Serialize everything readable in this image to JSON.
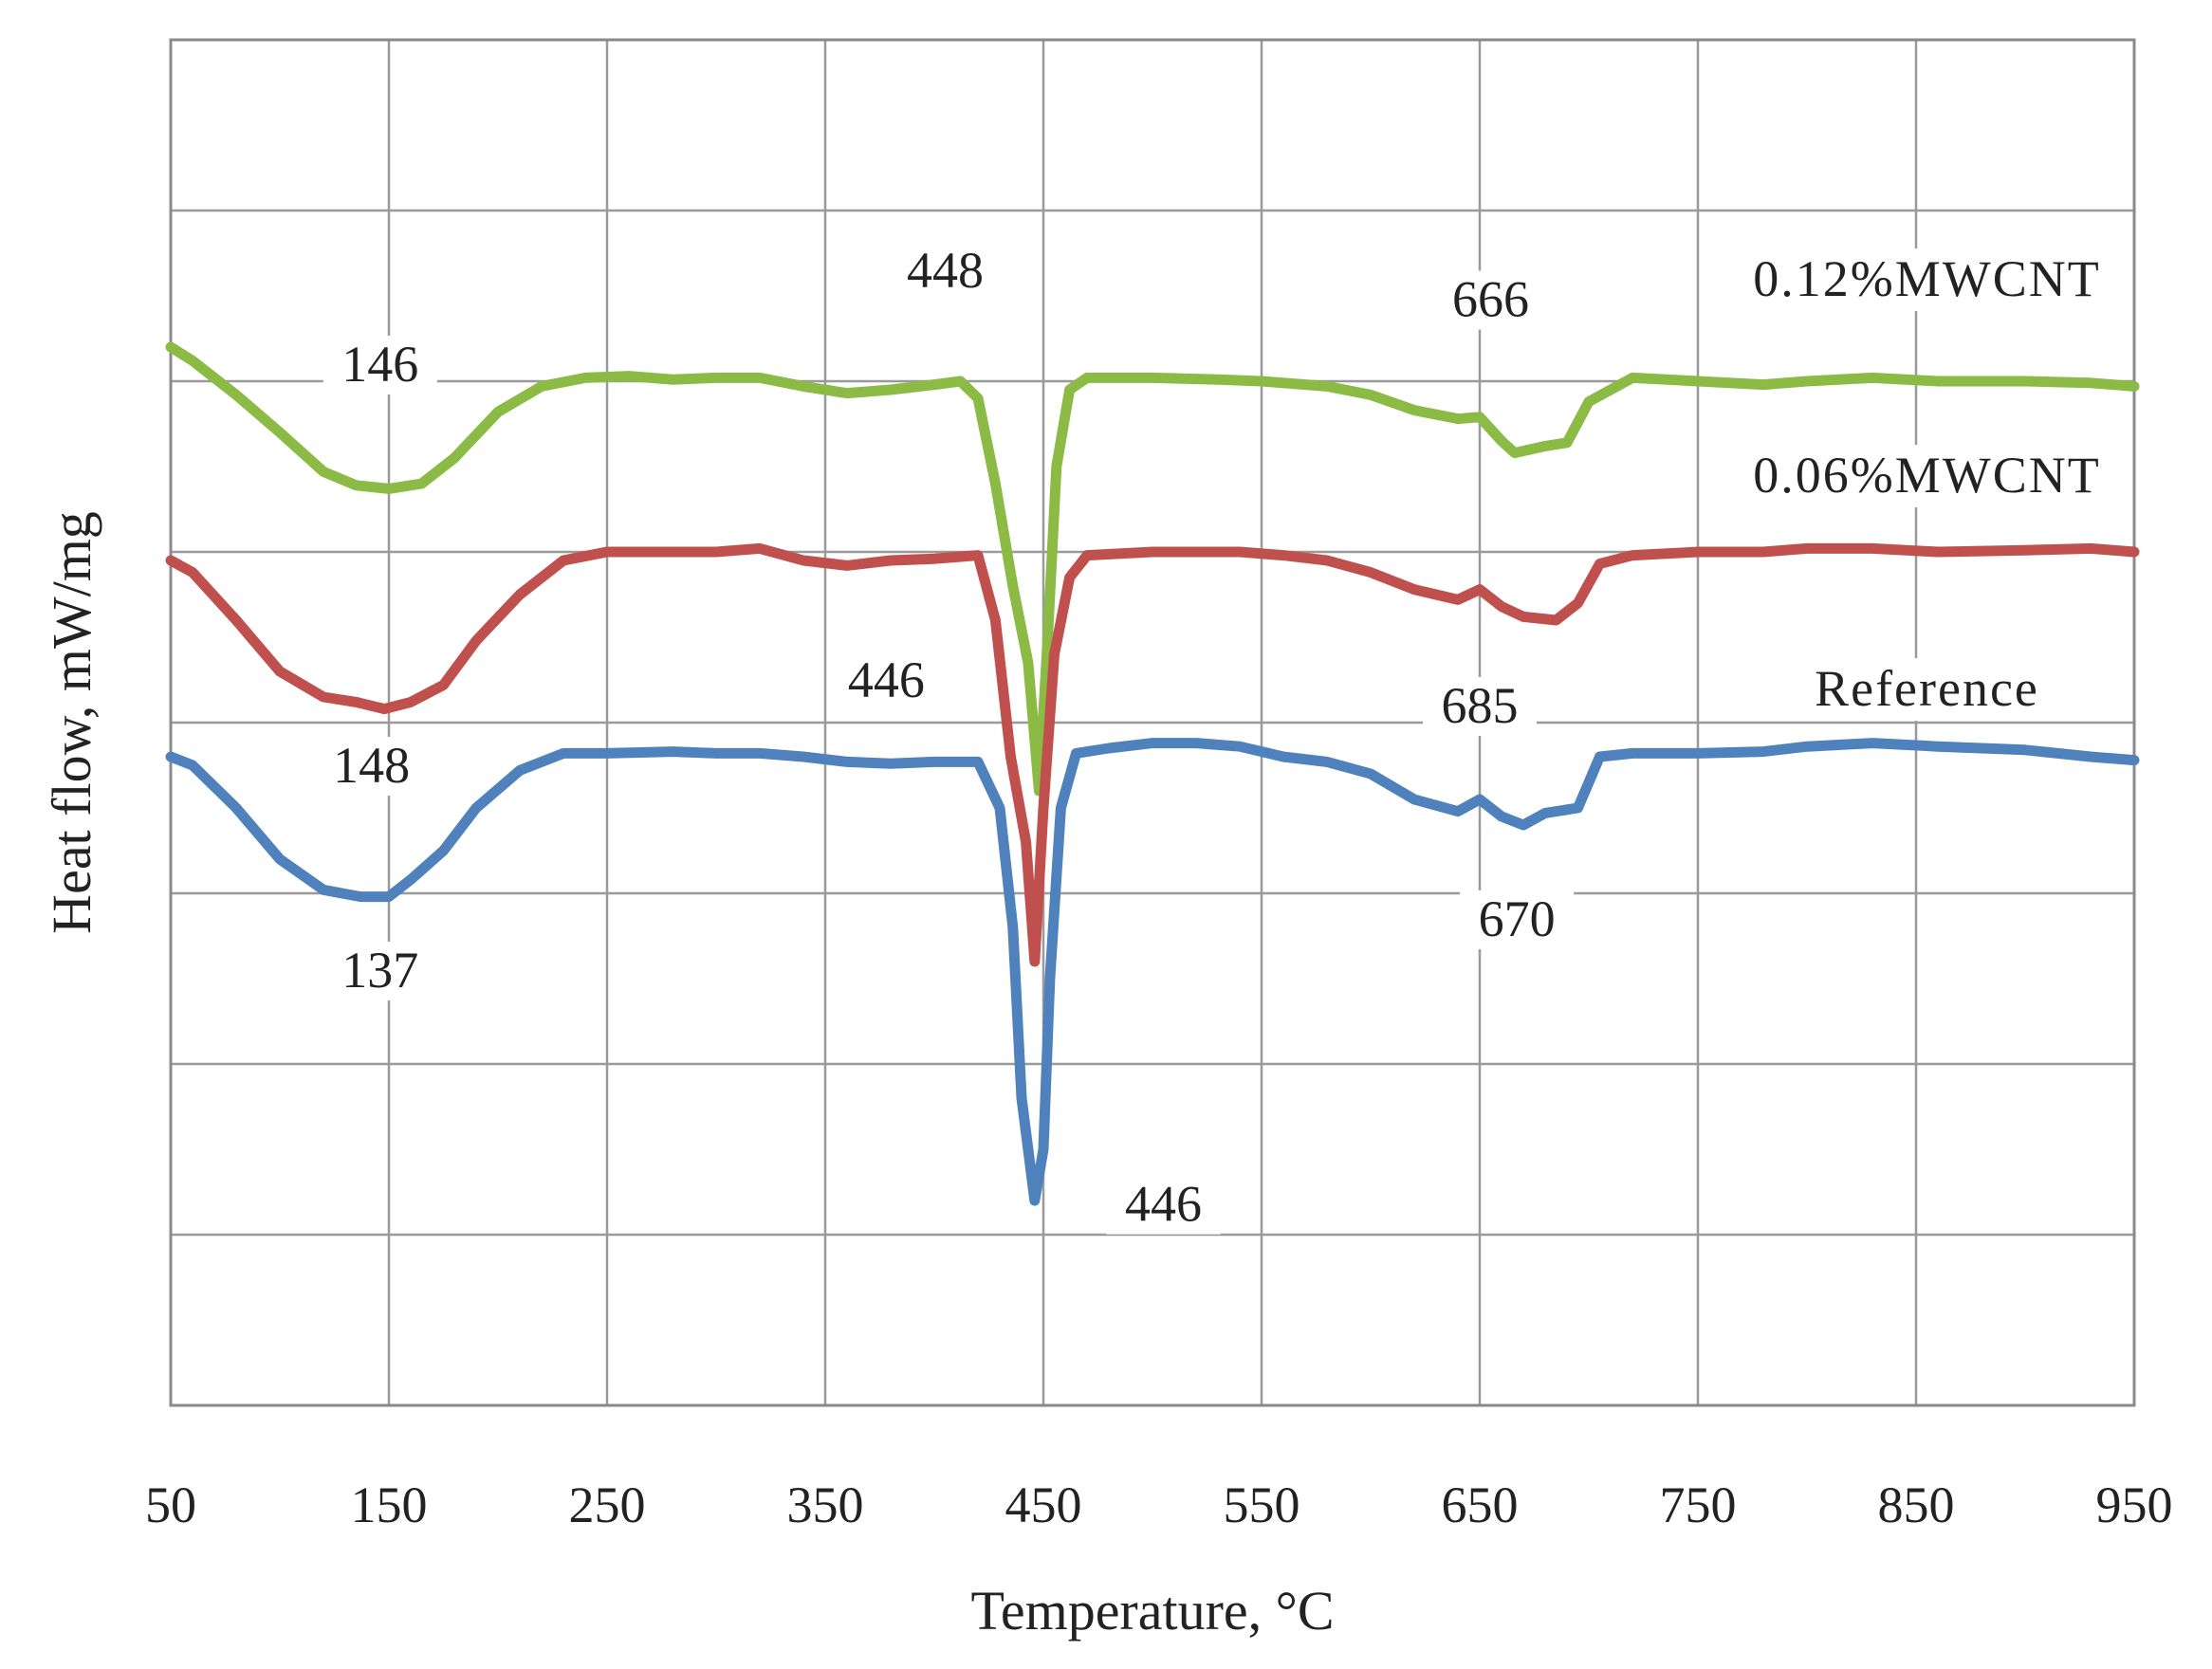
{
  "chart_data": {
    "type": "line",
    "title": "",
    "xlabel": "Temperature, °C",
    "ylabel": "Heat flow, mW/mg",
    "xlim": [
      50,
      950
    ],
    "ylim": [
      0,
      8
    ],
    "x_ticks": [
      50,
      150,
      250,
      350,
      450,
      550,
      650,
      750,
      850,
      950
    ],
    "y_ticks_labeled": false,
    "grid": true,
    "legend": "none",
    "series": [
      {
        "name": "0.12%MWCNT",
        "color": "#8bbb45",
        "points": [
          [
            50,
            6.2
          ],
          [
            60,
            6.12
          ],
          [
            80,
            5.92
          ],
          [
            100,
            5.7
          ],
          [
            120,
            5.47
          ],
          [
            135,
            5.39
          ],
          [
            150,
            5.37
          ],
          [
            165,
            5.4
          ],
          [
            180,
            5.55
          ],
          [
            200,
            5.82
          ],
          [
            220,
            5.97
          ],
          [
            240,
            6.02
          ],
          [
            260,
            6.03
          ],
          [
            280,
            6.01
          ],
          [
            300,
            6.02
          ],
          [
            320,
            6.02
          ],
          [
            340,
            5.97
          ],
          [
            360,
            5.93
          ],
          [
            380,
            5.95
          ],
          [
            400,
            5.98
          ],
          [
            412,
            6.0
          ],
          [
            420,
            5.9
          ],
          [
            428,
            5.4
          ],
          [
            436,
            4.8
          ],
          [
            443,
            4.35
          ],
          [
            448,
            3.6
          ],
          [
            452,
            4.5
          ],
          [
            456,
            5.5
          ],
          [
            462,
            5.95
          ],
          [
            470,
            6.02
          ],
          [
            500,
            6.02
          ],
          [
            530,
            6.01
          ],
          [
            550,
            6.0
          ],
          [
            580,
            5.97
          ],
          [
            600,
            5.92
          ],
          [
            620,
            5.83
          ],
          [
            640,
            5.78
          ],
          [
            650,
            5.79
          ],
          [
            660,
            5.65
          ],
          [
            666,
            5.58
          ],
          [
            680,
            5.62
          ],
          [
            690,
            5.64
          ],
          [
            700,
            5.88
          ],
          [
            720,
            6.02
          ],
          [
            750,
            6.0
          ],
          [
            780,
            5.98
          ],
          [
            800,
            6.0
          ],
          [
            830,
            6.02
          ],
          [
            860,
            6.0
          ],
          [
            900,
            6.0
          ],
          [
            930,
            5.99
          ],
          [
            950,
            5.97
          ]
        ]
      },
      {
        "name": "0.06%MWCNT",
        "color": "#c0504d",
        "points": [
          [
            50,
            4.95
          ],
          [
            60,
            4.88
          ],
          [
            80,
            4.6
          ],
          [
            100,
            4.3
          ],
          [
            120,
            4.15
          ],
          [
            135,
            4.12
          ],
          [
            148,
            4.08
          ],
          [
            160,
            4.12
          ],
          [
            175,
            4.22
          ],
          [
            190,
            4.48
          ],
          [
            210,
            4.75
          ],
          [
            230,
            4.95
          ],
          [
            250,
            5.0
          ],
          [
            280,
            5.0
          ],
          [
            300,
            5.0
          ],
          [
            320,
            5.02
          ],
          [
            340,
            4.95
          ],
          [
            360,
            4.92
          ],
          [
            380,
            4.95
          ],
          [
            400,
            4.96
          ],
          [
            420,
            4.98
          ],
          [
            428,
            4.6
          ],
          [
            435,
            3.8
          ],
          [
            442,
            3.3
          ],
          [
            446,
            2.6
          ],
          [
            450,
            3.5
          ],
          [
            455,
            4.4
          ],
          [
            462,
            4.85
          ],
          [
            470,
            4.98
          ],
          [
            500,
            5.0
          ],
          [
            540,
            5.0
          ],
          [
            560,
            4.98
          ],
          [
            580,
            4.95
          ],
          [
            600,
            4.88
          ],
          [
            620,
            4.78
          ],
          [
            640,
            4.72
          ],
          [
            650,
            4.78
          ],
          [
            660,
            4.68
          ],
          [
            670,
            4.62
          ],
          [
            685,
            4.6
          ],
          [
            695,
            4.7
          ],
          [
            705,
            4.93
          ],
          [
            720,
            4.98
          ],
          [
            750,
            5.0
          ],
          [
            780,
            5.0
          ],
          [
            800,
            5.02
          ],
          [
            830,
            5.02
          ],
          [
            860,
            5.0
          ],
          [
            900,
            5.01
          ],
          [
            930,
            5.02
          ],
          [
            950,
            5.0
          ]
        ]
      },
      {
        "name": "Reference",
        "color": "#4f81bd",
        "points": [
          [
            50,
            3.8
          ],
          [
            60,
            3.75
          ],
          [
            80,
            3.5
          ],
          [
            100,
            3.2
          ],
          [
            120,
            3.02
          ],
          [
            137,
            2.98
          ],
          [
            150,
            2.98
          ],
          [
            160,
            3.08
          ],
          [
            175,
            3.25
          ],
          [
            190,
            3.5
          ],
          [
            210,
            3.72
          ],
          [
            230,
            3.82
          ],
          [
            250,
            3.82
          ],
          [
            280,
            3.83
          ],
          [
            300,
            3.82
          ],
          [
            320,
            3.82
          ],
          [
            340,
            3.8
          ],
          [
            360,
            3.77
          ],
          [
            380,
            3.76
          ],
          [
            400,
            3.77
          ],
          [
            420,
            3.77
          ],
          [
            430,
            3.5
          ],
          [
            436,
            2.8
          ],
          [
            440,
            1.8
          ],
          [
            446,
            1.2
          ],
          [
            450,
            1.5
          ],
          [
            453,
            2.5
          ],
          [
            458,
            3.5
          ],
          [
            465,
            3.82
          ],
          [
            480,
            3.85
          ],
          [
            500,
            3.88
          ],
          [
            520,
            3.88
          ],
          [
            540,
            3.86
          ],
          [
            560,
            3.8
          ],
          [
            580,
            3.77
          ],
          [
            600,
            3.7
          ],
          [
            620,
            3.55
          ],
          [
            640,
            3.48
          ],
          [
            650,
            3.55
          ],
          [
            660,
            3.45
          ],
          [
            670,
            3.4
          ],
          [
            680,
            3.47
          ],
          [
            695,
            3.5
          ],
          [
            705,
            3.8
          ],
          [
            720,
            3.82
          ],
          [
            750,
            3.82
          ],
          [
            780,
            3.83
          ],
          [
            800,
            3.86
          ],
          [
            830,
            3.88
          ],
          [
            860,
            3.86
          ],
          [
            900,
            3.84
          ],
          [
            930,
            3.8
          ],
          [
            950,
            3.78
          ]
        ]
      }
    ],
    "annotations": [
      {
        "text": "146",
        "x": 146,
        "y": 6.0
      },
      {
        "text": "448",
        "x": 405,
        "y": 6.55
      },
      {
        "text": "666",
        "x": 655,
        "y": 6.38
      },
      {
        "text": "148",
        "x": 142,
        "y": 3.65
      },
      {
        "text": "446",
        "x": 378,
        "y": 4.15
      },
      {
        "text": "685",
        "x": 650,
        "y": 4.0
      },
      {
        "text": "137",
        "x": 146,
        "y": 2.45
      },
      {
        "text": "670",
        "x": 667,
        "y": 2.75
      },
      {
        "text": "446",
        "x": 505,
        "y": 1.08
      }
    ],
    "series_labels": [
      {
        "text": "0.12%MWCNT",
        "x": 855,
        "y": 6.5
      },
      {
        "text": "0.06%MWCNT",
        "x": 855,
        "y": 5.35
      },
      {
        "text": "Reference",
        "x": 855,
        "y": 4.1
      }
    ]
  }
}
